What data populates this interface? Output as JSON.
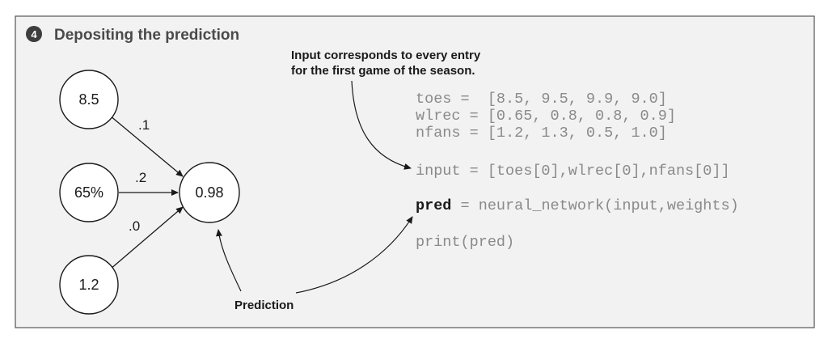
{
  "header": {
    "step_number": "4",
    "title": "Depositing the prediction"
  },
  "network": {
    "inputs": [
      {
        "id": "toes",
        "label": "8.5"
      },
      {
        "id": "wlrec",
        "label": "65%"
      },
      {
        "id": "nfans",
        "label": "1.2"
      }
    ],
    "weights": [
      ".1",
      ".2",
      ".0"
    ],
    "output": {
      "label": "0.98"
    }
  },
  "annotations": {
    "input_note_line1": "Input corresponds to every entry",
    "input_note_line2": "for the first game of the season.",
    "prediction_note": "Prediction"
  },
  "code": {
    "line_toes": "toes =  [8.5, 9.5, 9.9, 9.0]",
    "line_wlrec": "wlrec = [0.65, 0.8, 0.8, 0.9]",
    "line_nfans": "nfans = [1.2, 1.3, 0.5, 1.0]",
    "line_input": "input = [toes[0],wlrec[0],nfans[0]]",
    "pred_keyword": "pred",
    "pred_rest": " = neural_network(input,weights)",
    "line_print": "print(pred)"
  },
  "colors": {
    "panel_background": "#f2f2f2",
    "code_text": "#8a8a8a",
    "ink": "#1a1a1a"
  }
}
